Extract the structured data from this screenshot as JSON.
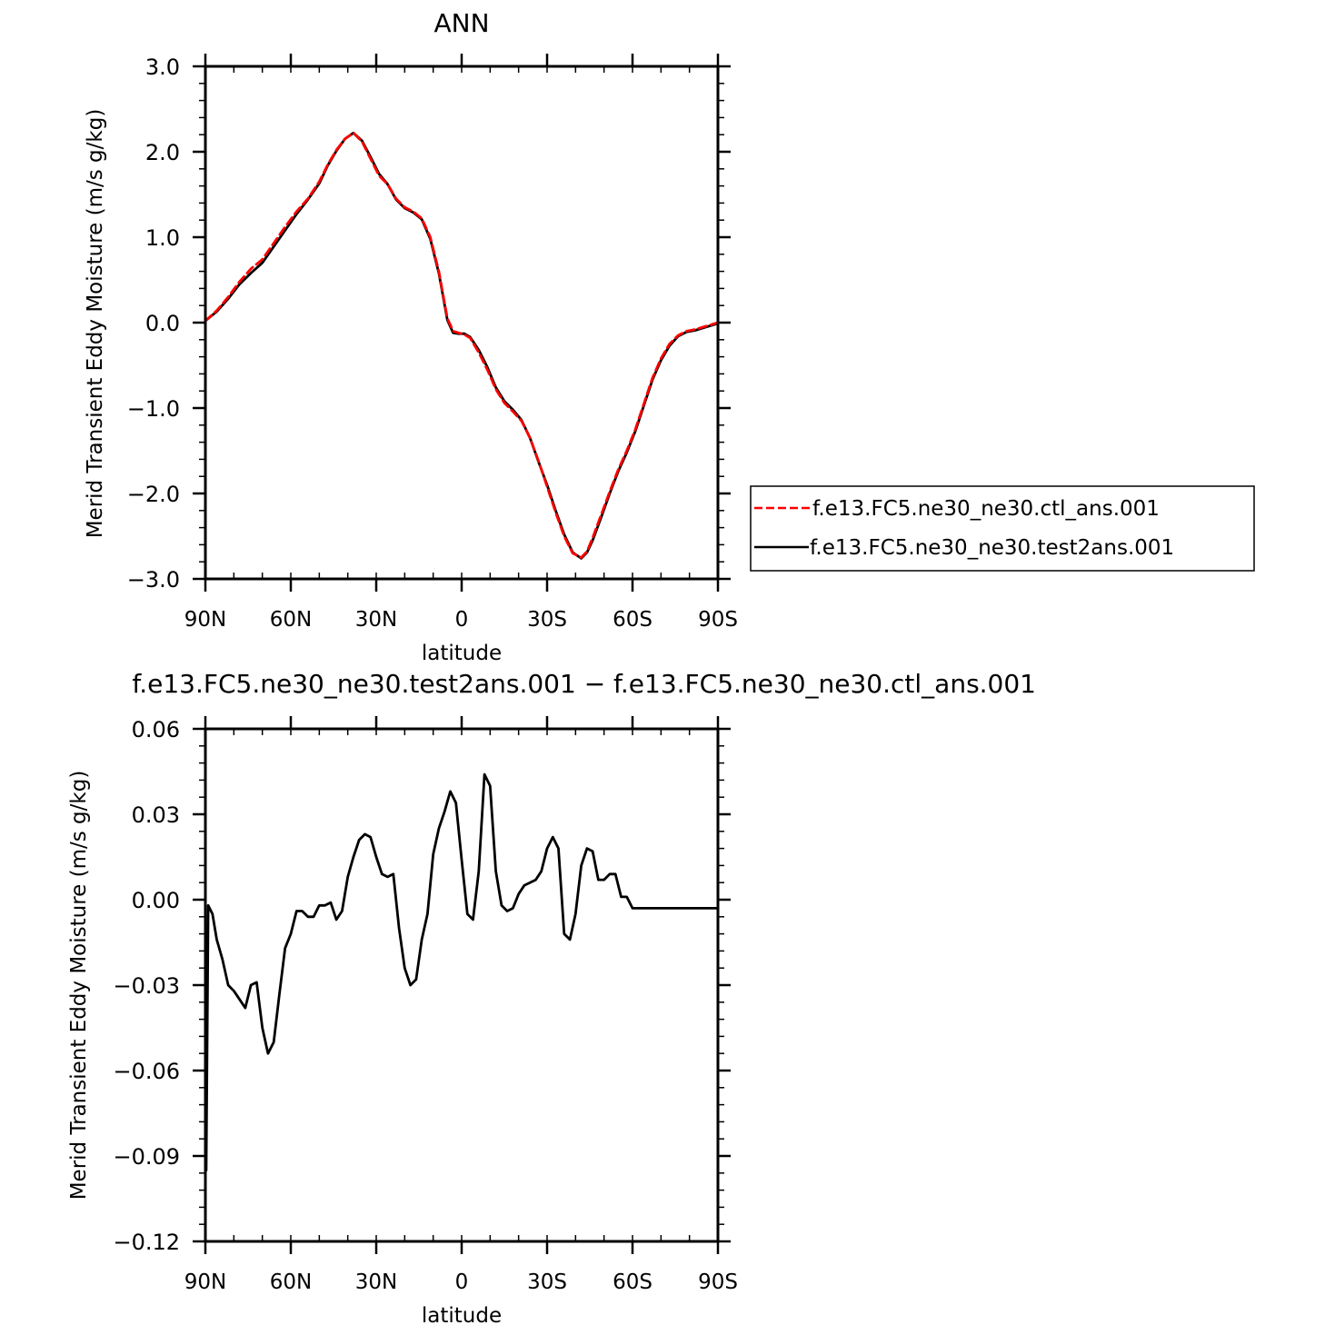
{
  "chart_data": [
    {
      "type": "line",
      "title": "ANN",
      "xlabel": "latitude",
      "ylabel": "Merid Transient Eddy Moisture (m/s g/kg)",
      "xlim": [
        90,
        -90
      ],
      "ylim": [
        -3.0,
        3.0
      ],
      "x_ticks": [
        90,
        60,
        30,
        0,
        -30,
        -60,
        -90
      ],
      "x_tick_labels": [
        "90N",
        "60N",
        "30N",
        "0",
        "30S",
        "60S",
        "90S"
      ],
      "y_ticks": [
        -3.0,
        -2.0,
        -1.0,
        0.0,
        1.0,
        2.0,
        3.0
      ],
      "y_tick_labels": [
        "−3.0",
        "−2.0",
        "−1.0",
        "0.0",
        "1.0",
        "2.0",
        "3.0"
      ],
      "legend_position": "right",
      "series": [
        {
          "name": "f.e13.FC5.ne30_ne30.ctl_ans.001",
          "color": "#ff0000",
          "dash": "dashed",
          "x": [
            90,
            86,
            82,
            78,
            74,
            70,
            66,
            62,
            58,
            54,
            50,
            47,
            44,
            41,
            38,
            35,
            32,
            29,
            26,
            23,
            20,
            17,
            14,
            11,
            8,
            5,
            3,
            1,
            -1,
            -3,
            -6,
            -9,
            -12,
            -15,
            -18,
            -21,
            -24,
            -27,
            -30,
            -33,
            -36,
            -39,
            -42,
            -44,
            -46,
            -49,
            -52,
            -55,
            -58,
            -61,
            -64,
            -67,
            -70,
            -73,
            -76,
            -79,
            -82,
            -85,
            -88,
            -90
          ],
          "values": [
            0.02,
            0.14,
            0.3,
            0.48,
            0.63,
            0.74,
            0.93,
            1.12,
            1.3,
            1.45,
            1.65,
            1.85,
            2.02,
            2.15,
            2.22,
            2.12,
            1.92,
            1.72,
            1.62,
            1.45,
            1.35,
            1.3,
            1.22,
            1.0,
            0.6,
            0.05,
            -0.1,
            -0.12,
            -0.14,
            -0.18,
            -0.35,
            -0.55,
            -0.78,
            -0.94,
            -1.04,
            -1.15,
            -1.35,
            -1.62,
            -1.92,
            -2.22,
            -2.5,
            -2.7,
            -2.75,
            -2.68,
            -2.52,
            -2.25,
            -1.98,
            -1.72,
            -1.5,
            -1.25,
            -0.95,
            -0.65,
            -0.42,
            -0.25,
            -0.15,
            -0.1,
            -0.08,
            -0.05,
            -0.02,
            0.0
          ]
        },
        {
          "name": "f.e13.FC5.ne30_ne30.test2ans.001",
          "color": "#000000",
          "dash": "solid",
          "x": [
            90,
            86,
            82,
            78,
            74,
            70,
            66,
            62,
            58,
            54,
            50,
            47,
            44,
            41,
            38,
            35,
            32,
            29,
            26,
            23,
            20,
            17,
            14,
            11,
            8,
            5,
            3,
            1,
            -1,
            -3,
            -6,
            -9,
            -12,
            -15,
            -18,
            -21,
            -24,
            -27,
            -30,
            -33,
            -36,
            -39,
            -42,
            -44,
            -46,
            -49,
            -52,
            -55,
            -58,
            -61,
            -64,
            -67,
            -70,
            -73,
            -76,
            -79,
            -82,
            -85,
            -88,
            -90
          ],
          "values": [
            0.02,
            0.13,
            0.28,
            0.45,
            0.58,
            0.7,
            0.89,
            1.08,
            1.27,
            1.44,
            1.63,
            1.84,
            2.01,
            2.15,
            2.22,
            2.13,
            1.94,
            1.74,
            1.62,
            1.44,
            1.34,
            1.29,
            1.21,
            0.98,
            0.58,
            0.03,
            -0.12,
            -0.13,
            -0.13,
            -0.17,
            -0.32,
            -0.52,
            -0.76,
            -0.92,
            -1.02,
            -1.14,
            -1.35,
            -1.63,
            -1.9,
            -2.2,
            -2.48,
            -2.69,
            -2.76,
            -2.69,
            -2.55,
            -2.28,
            -2.0,
            -1.74,
            -1.52,
            -1.27,
            -0.97,
            -0.67,
            -0.44,
            -0.27,
            -0.16,
            -0.11,
            -0.09,
            -0.06,
            -0.03,
            -0.01
          ]
        }
      ]
    },
    {
      "type": "line",
      "title": "f.e13.FC5.ne30_ne30.test2ans.001 − f.e13.FC5.ne30_ne30.ctl_ans.001",
      "xlabel": "latitude",
      "ylabel": "Merid Transient Eddy Moisture (m/s g/kg)",
      "xlim": [
        90,
        -90
      ],
      "ylim": [
        -0.12,
        0.06
      ],
      "x_ticks": [
        90,
        60,
        30,
        0,
        -30,
        -60,
        -90
      ],
      "x_tick_labels": [
        "90N",
        "60N",
        "30N",
        "0",
        "30S",
        "60S",
        "90S"
      ],
      "y_ticks": [
        -0.12,
        -0.09,
        -0.06,
        -0.03,
        0.0,
        0.03,
        0.06
      ],
      "y_tick_labels": [
        "−0.12",
        "−0.09",
        "−0.06",
        "−0.03",
        "0.00",
        "0.03",
        "0.06"
      ],
      "series": [
        {
          "color": "#000000",
          "dash": "solid",
          "x": [
            89.7,
            89.0,
            87.5,
            86.0,
            84.0,
            82.0,
            80.0,
            78.0,
            76.0,
            74.0,
            72.0,
            70.0,
            68.0,
            66.0,
            64.0,
            62.0,
            60.0,
            58.0,
            56.0,
            54.0,
            52.0,
            50.0,
            48.0,
            46.0,
            44.0,
            42.0,
            40.0,
            38.0,
            36.0,
            34.0,
            32.0,
            30.0,
            28.0,
            26.0,
            24.0,
            22.0,
            20.0,
            18.0,
            16.0,
            14.0,
            12.0,
            10.0,
            8.0,
            6.0,
            4.0,
            2.0,
            0.0,
            -2.0,
            -4.0,
            -6.0,
            -8.0,
            -10.0,
            -12.0,
            -14.0,
            -16.0,
            -18.0,
            -20.0,
            -22.0,
            -24.0,
            -26.0,
            -28.0,
            -30.0,
            -32.0,
            -34.0,
            -36.0,
            -38.0,
            -40.0,
            -42.0,
            -44.0,
            -46.0,
            -48.0,
            -50.0,
            -52.0,
            -54.0,
            -56.0,
            -58.0,
            -60.0,
            -62.0,
            -64.0,
            -66.0,
            -68.0,
            -70.0,
            -72.0,
            -74.0,
            -76.0,
            -78.0,
            -80.0,
            -82.0,
            -84.0,
            -86.0,
            -88.0,
            -89.0,
            -90.0
          ],
          "values": [
            -0.095,
            -0.002,
            -0.005,
            -0.014,
            -0.021,
            -0.03,
            -0.032,
            -0.035,
            -0.038,
            -0.03,
            -0.029,
            -0.045,
            -0.054,
            -0.05,
            -0.033,
            -0.017,
            -0.012,
            -0.004,
            -0.004,
            -0.006,
            -0.006,
            -0.002,
            -0.002,
            -0.001,
            -0.007,
            -0.004,
            0.008,
            0.015,
            0.021,
            0.023,
            0.022,
            0.015,
            0.009,
            0.008,
            0.009,
            -0.01,
            -0.024,
            -0.03,
            -0.028,
            -0.014,
            -0.005,
            0.016,
            0.025,
            0.031,
            0.038,
            0.034,
            0.014,
            -0.005,
            -0.007,
            0.01,
            0.044,
            0.04,
            0.01,
            -0.002,
            -0.004,
            -0.003,
            0.002,
            0.005,
            0.006,
            0.007,
            0.01,
            0.018,
            0.022,
            0.018,
            -0.012,
            -0.014,
            -0.005,
            0.012,
            0.018,
            0.017,
            0.007,
            0.007,
            0.009,
            0.009,
            0.001,
            0.001,
            -0.003,
            -0.003,
            -0.003,
            -0.003,
            -0.003,
            -0.003,
            -0.003,
            -0.003,
            -0.003,
            -0.003,
            -0.003,
            -0.003,
            -0.003,
            -0.003,
            -0.003,
            -0.003,
            -0.003
          ]
        }
      ]
    }
  ]
}
